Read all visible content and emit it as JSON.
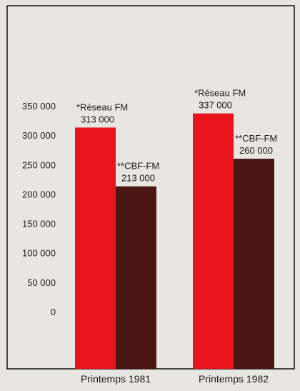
{
  "chart_data": {
    "type": "bar",
    "categories": [
      "Printemps 1981",
      "Printemps 1982"
    ],
    "series": [
      {
        "name": "*Réseau FM",
        "values": [
          313000,
          337000
        ],
        "value_labels": [
          "313 000",
          "337 000"
        ]
      },
      {
        "name": "**CBF-FM",
        "values": [
          213000,
          260000
        ],
        "value_labels": [
          "213 000",
          "260 000"
        ]
      }
    ],
    "yticks": [
      0,
      50000,
      100000,
      150000,
      200000,
      250000,
      300000,
      350000
    ],
    "ytick_labels": [
      "0",
      "50 000",
      "100 000",
      "150 000",
      "200 000",
      "250 000",
      "300 000",
      "350 000"
    ],
    "ylim": [
      0,
      350000
    ],
    "grid": false,
    "colors": {
      "series": [
        "#e8131b",
        "#4a1614"
      ],
      "frame": "#111111",
      "background": "#e8e6e3"
    }
  }
}
